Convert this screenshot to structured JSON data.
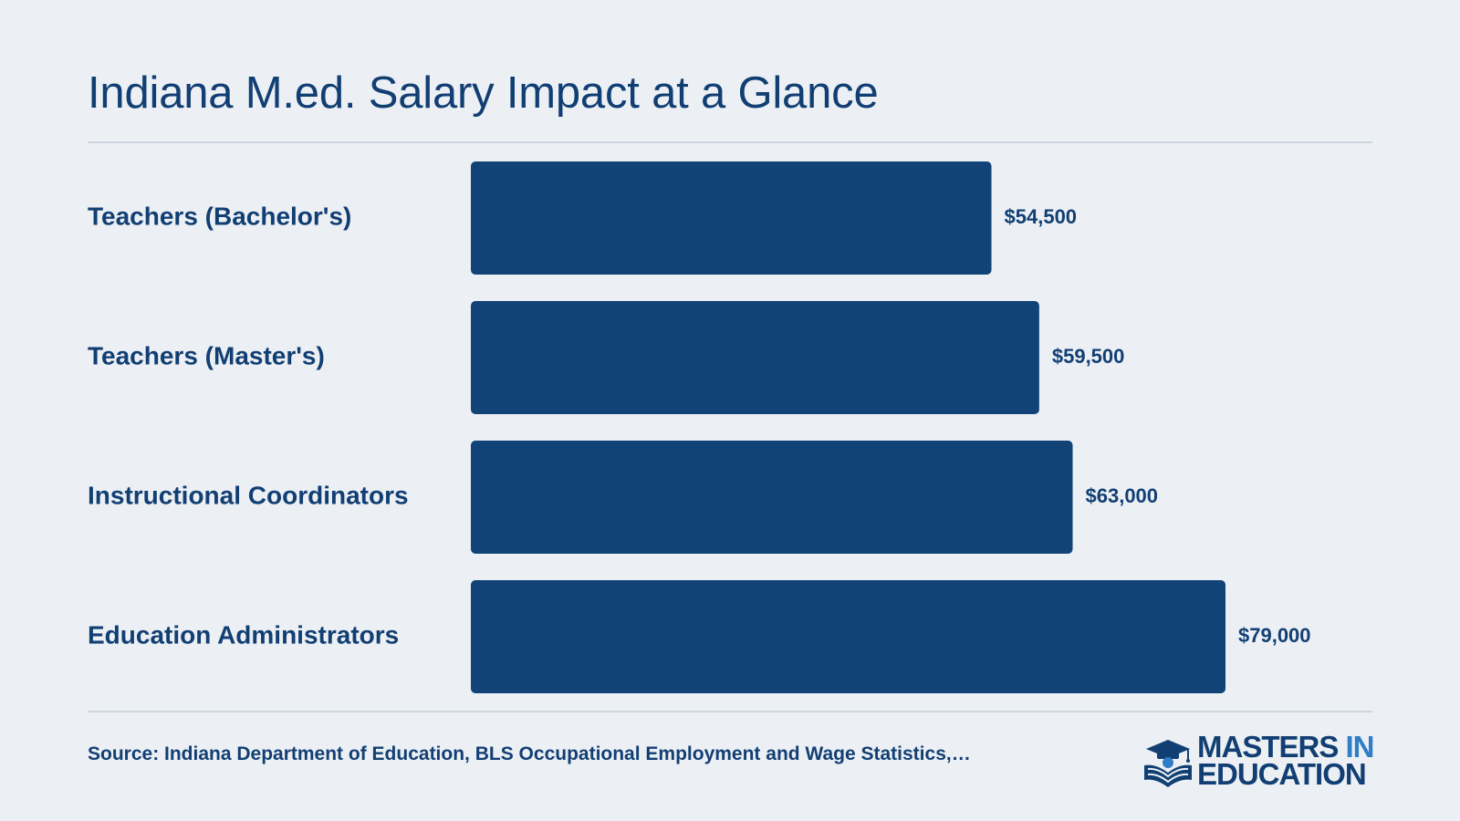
{
  "title": "Indiana M.ed. Salary Impact at a Glance",
  "source": "Source: Indiana Department of Education, BLS Occupational Employment and Wage Statistics,…",
  "brand": {
    "line1_part1": "MASTERS",
    "line1_part2": "IN",
    "line2": "EDUCATION",
    "icon": "graduation-cap-book-icon"
  },
  "colors": {
    "background": "#ECF0F5",
    "bar": "#114377",
    "text": "#123F73",
    "accent": "#2F7EC6",
    "rule": "#CDD5DE"
  },
  "chart_data": {
    "type": "bar",
    "orientation": "horizontal",
    "title": "Indiana M.ed. Salary Impact at a Glance",
    "categories": [
      "Teachers (Bachelor's)",
      "Teachers (Master's)",
      "Instructional Coordinators",
      "Education Administrators"
    ],
    "values": [
      54500,
      59500,
      63000,
      79000
    ],
    "value_labels": [
      "$54,500",
      "$59,500",
      "$63,000",
      "$79,000"
    ],
    "xlim": [
      0,
      79000
    ],
    "grid": false,
    "legend": "none"
  }
}
